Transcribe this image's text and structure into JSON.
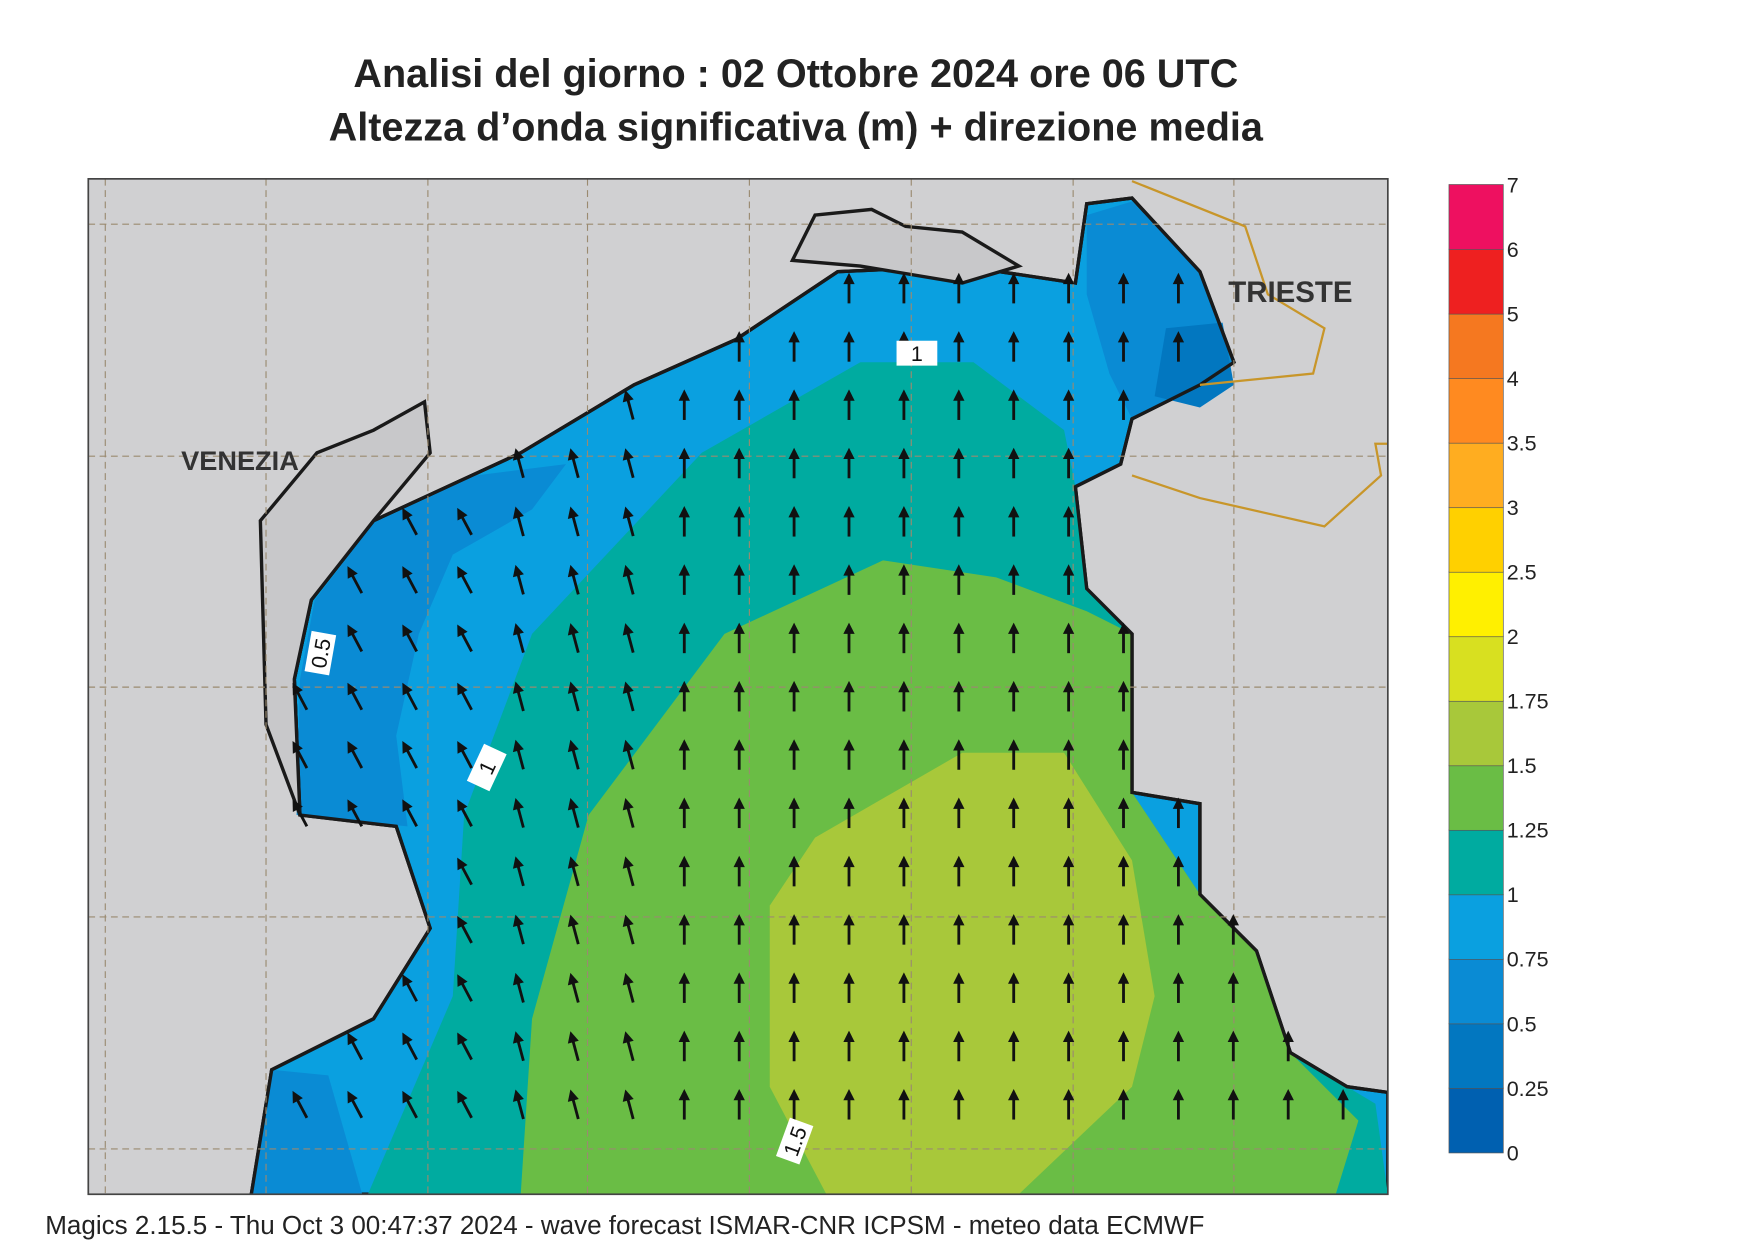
{
  "title": [
    "Analisi del giorno :  02  Ottobre  2024   ore 06 UTC",
    "Altezza d’onda significativa (m) + direzione media"
  ],
  "places": [
    "VENEZIA",
    "TRIESTE"
  ],
  "contour_labels": [
    "1",
    "0.5",
    "1",
    "1.5"
  ],
  "legend": {
    "ticks": [
      0,
      0.25,
      0.5,
      0.75,
      1,
      1.25,
      1.5,
      1.75,
      2,
      2.5,
      3,
      3.5,
      4,
      5,
      6,
      7
    ],
    "colors": [
      "#0060b0",
      "#0277c0",
      "#0a8bd4",
      "#0aa0e0",
      "#00aba0",
      "#6abd45",
      "#a8c83a",
      "#d8e020",
      "#fff000",
      "#ffd000",
      "#ffad20",
      "#ff8a20",
      "#f57820",
      "#ee2020",
      "#ee1060"
    ]
  },
  "footer": "Magics 2.15.5 - Thu Oct  3 00:47:37 2024 - wave forecast  ISMAR-CNR  ICPSM - meteo data    ECMWF"
}
